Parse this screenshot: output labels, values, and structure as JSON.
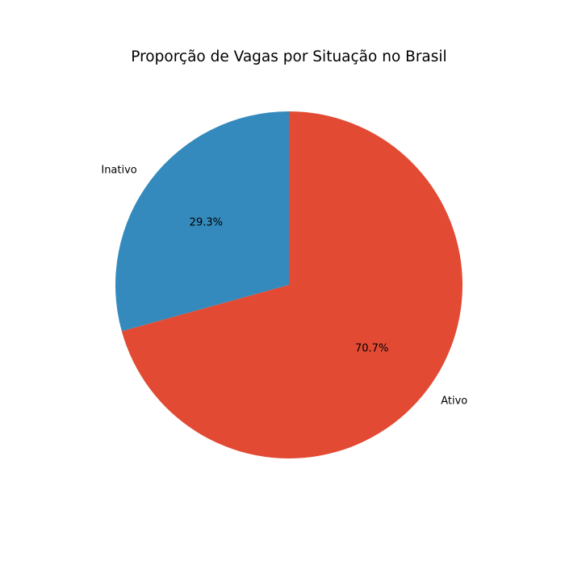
{
  "chart_data": {
    "type": "pie",
    "title": "Proporção de Vagas por Situação no Brasil",
    "slices": [
      {
        "label": "Inativo",
        "value": 29.3,
        "pct_label": "29.3%",
        "color": "#348abd"
      },
      {
        "label": "Ativo",
        "value": 70.7,
        "pct_label": "70.7%",
        "color": "#e24a33"
      }
    ],
    "start_angle": 90,
    "direction": "counterclockwise",
    "legend": "none"
  }
}
